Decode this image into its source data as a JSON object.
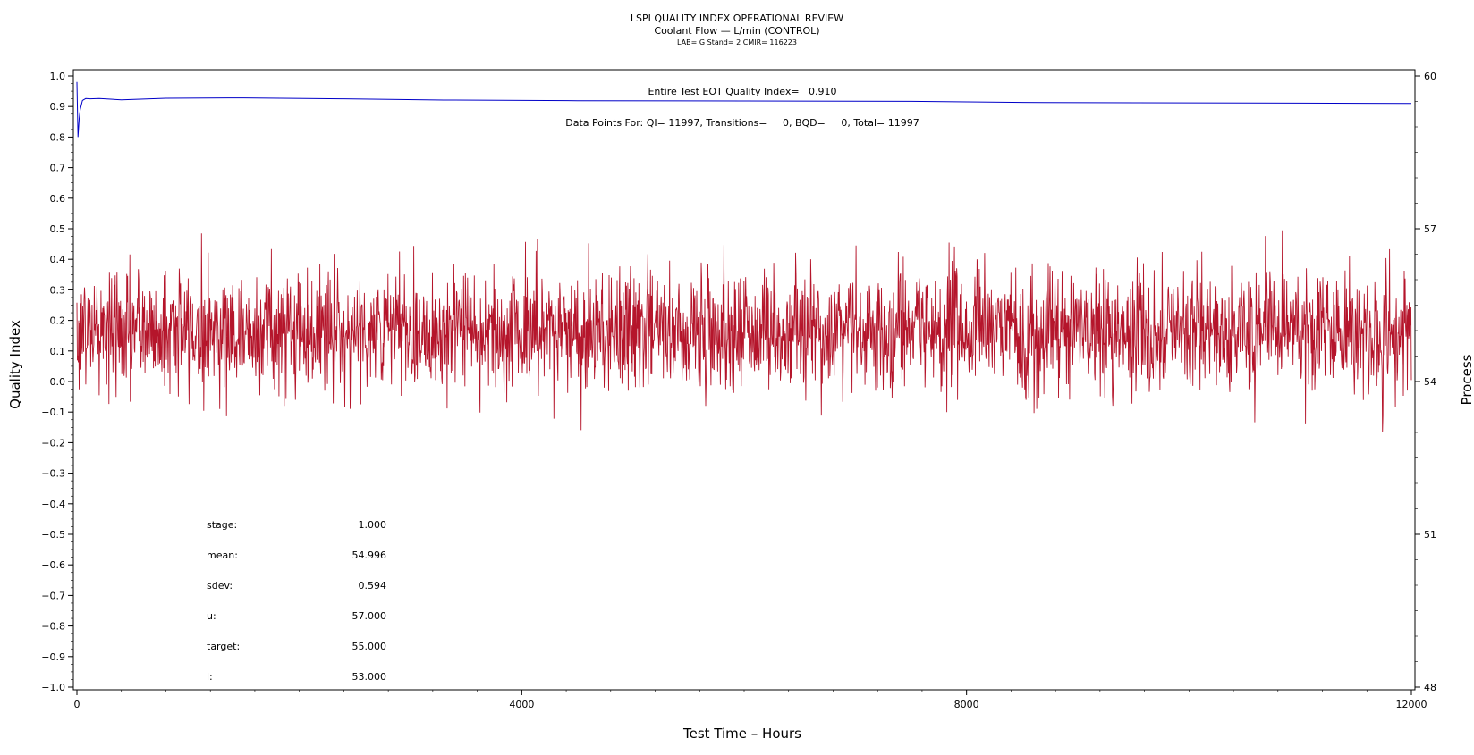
{
  "header": {
    "title": "LSPI QUALITY INDEX OPERATIONAL REVIEW",
    "subtitle": "Coolant Flow — L/min (CONTROL)",
    "info": "LAB= G Stand= 2 CMIR= 116223"
  },
  "chart_data": {
    "type": "line",
    "xlabel": "Test Time – Hours",
    "ylabel": "Quality Index",
    "y2label": "Process",
    "xlim": [
      0,
      12000
    ],
    "ylim": [
      -1.0,
      1.0
    ],
    "y2lim": [
      48,
      60
    ],
    "x_ticks": [
      0,
      4000,
      8000,
      12000
    ],
    "y_ticks": [
      -1.0,
      -0.9,
      -0.8,
      -0.7,
      -0.6,
      -0.5,
      -0.4,
      -0.3,
      -0.2,
      -0.1,
      0.0,
      0.1,
      0.2,
      0.3,
      0.4,
      0.5,
      0.6,
      0.7,
      0.8,
      0.9,
      1.0
    ],
    "y2_ticks": [
      48,
      51,
      54,
      57,
      60
    ],
    "annotations": {
      "eot": "Entire Test EOT Quality Index=   0.910",
      "points": "Data Points For: QI= 11997, Transitions=     0, BQD=     0, Total= 11997"
    },
    "series": [
      {
        "role": "quality_index",
        "axis": "left",
        "color": "#0000c8",
        "x": [
          0,
          10,
          20,
          30,
          50,
          80,
          120,
          200,
          400,
          800,
          1500,
          2400,
          3300,
          4500,
          6000,
          7500,
          8700,
          10000,
          11000,
          12000
        ],
        "y": [
          0.98,
          0.8,
          0.86,
          0.89,
          0.92,
          0.926,
          0.925,
          0.926,
          0.922,
          0.927,
          0.928,
          0.925,
          0.921,
          0.919,
          0.918,
          0.917,
          0.913,
          0.912,
          0.911,
          0.91
        ]
      },
      {
        "role": "process",
        "axis": "right",
        "color": "#b5152b",
        "count": 11997,
        "mean": 54.996,
        "sdev": 0.594,
        "min": 53.0,
        "max": 57.1
      }
    ],
    "stats": [
      {
        "label": "stage:",
        "value": "1.000"
      },
      {
        "label": "mean:",
        "value": "54.996"
      },
      {
        "label": "sdev:",
        "value": "0.594"
      },
      {
        "label": "u:",
        "value": "57.000"
      },
      {
        "label": "target:",
        "value": "55.000"
      },
      {
        "label": "l:",
        "value": "53.000"
      }
    ]
  }
}
